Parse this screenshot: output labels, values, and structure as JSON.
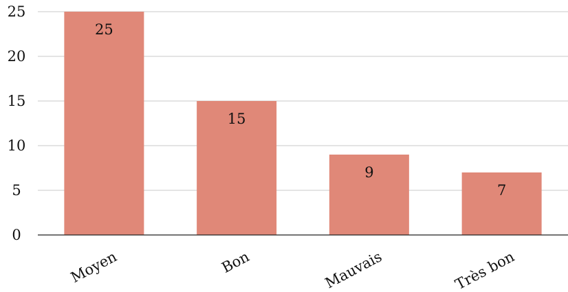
{
  "chart_data": {
    "type": "bar",
    "title": "",
    "xlabel": "",
    "ylabel": "",
    "categories": [
      "Moyen",
      "Bon",
      "Mauvais",
      "Très bon"
    ],
    "values": [
      25,
      15,
      9,
      7
    ],
    "data_labels": [
      "25",
      "15",
      "9",
      "7"
    ],
    "ylim": [
      0,
      25
    ],
    "y_ticks": [
      0,
      5,
      10,
      15,
      20,
      25
    ],
    "y_tick_labels": [
      "0",
      "5",
      "10",
      "15",
      "20",
      "25"
    ],
    "grid": true,
    "legend": "none",
    "bar_color": "#e08878",
    "category_label_rotation": "rotated"
  }
}
